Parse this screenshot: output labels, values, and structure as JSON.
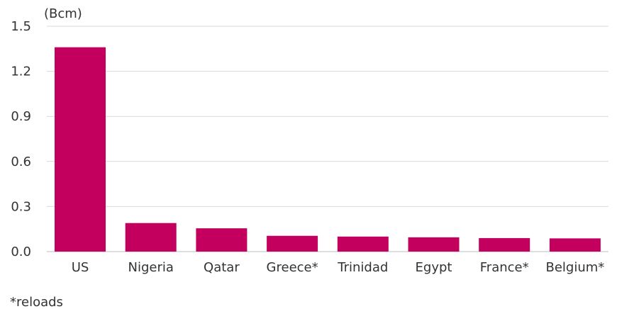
{
  "chart_data": {
    "type": "bar",
    "title": "",
    "xlabel": "",
    "ylabel": "(Bcm)",
    "categories": [
      "US",
      "Nigeria",
      "Qatar",
      "Greece*",
      "Trinidad",
      "Egypt",
      "France*",
      "Belgium*"
    ],
    "values": [
      1.36,
      0.19,
      0.155,
      0.105,
      0.1,
      0.095,
      0.09,
      0.088
    ],
    "ylim": [
      0,
      1.5
    ],
    "yticks": [
      "0.0",
      "0.3",
      "0.6",
      "0.9",
      "1.2",
      "1.5"
    ],
    "grid": true,
    "legend": "none",
    "footnote": "*reloads",
    "colors": {
      "bar": "#C4005E",
      "grid": "#d9d9d9",
      "text": "#333333"
    }
  }
}
